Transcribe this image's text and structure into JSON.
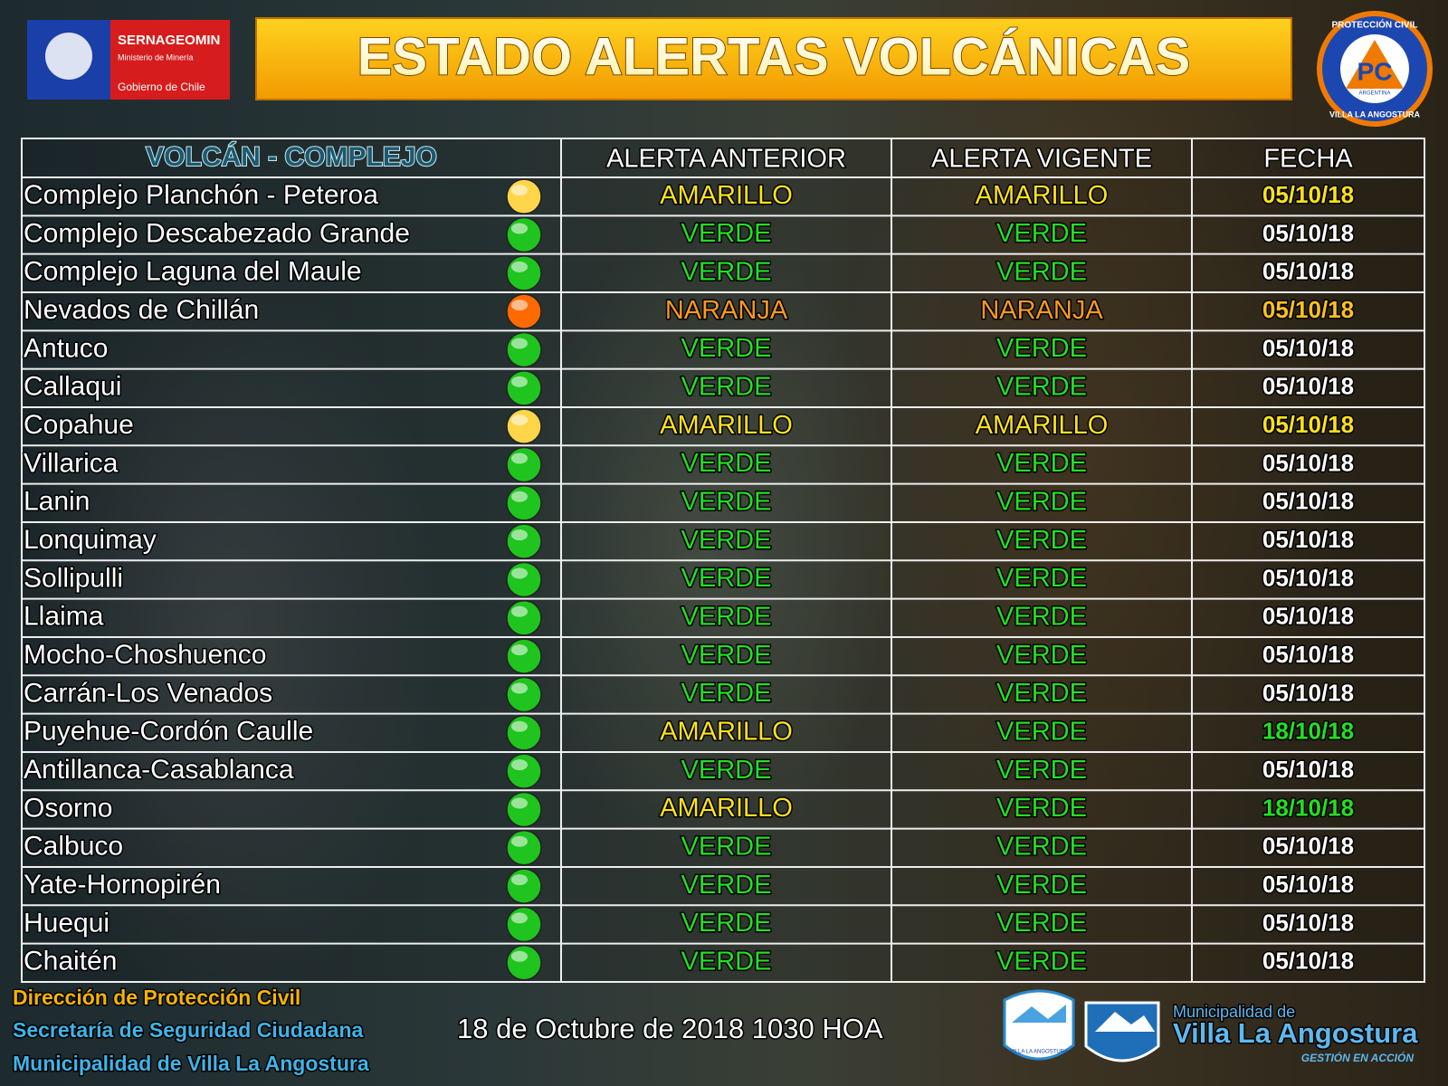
{
  "header": {
    "title": "ESTADO ALERTAS VOLCÁNICAS",
    "left_logo": {
      "name": "SERNAGEOMIN",
      "ministry": "Ministerio de Minería",
      "government": "Gobierno de Chile"
    },
    "right_logo": {
      "ring_top": "PROTECCIÓN CIVIL",
      "initials": "PC",
      "country": "ARGENTINA",
      "ring_bottom": "VILLA LA ANGOSTURA"
    }
  },
  "table": {
    "headers": [
      "VOLCÁN - COMPLEJO",
      "ALERTA ANTERIOR",
      "ALERTA VIGENTE",
      "FECHA"
    ],
    "rows": [
      {
        "volcano": "Complejo Planchón - Peteroa",
        "previous": "AMARILLO",
        "current": "AMARILLO",
        "date": "05/10/18",
        "dot_color": "#ffd54a",
        "previous_color": "#ffe21a",
        "current_color": "#ffe21a",
        "date_color": "#ffe21a"
      },
      {
        "volcano": "Complejo Descabezado Grande",
        "previous": "VERDE",
        "current": "VERDE",
        "date": "05/10/18",
        "dot_color": "#1fc41f",
        "previous_color": "#22e022",
        "current_color": "#22e022",
        "date_color": "#ffffff"
      },
      {
        "volcano": "Complejo Laguna del Maule",
        "previous": "VERDE",
        "current": "VERDE",
        "date": "05/10/18",
        "dot_color": "#1fc41f",
        "previous_color": "#22e022",
        "current_color": "#22e022",
        "date_color": "#ffffff"
      },
      {
        "volcano": "Nevados de Chillán",
        "previous": "NARANJA",
        "current": "NARANJA",
        "date": "05/10/18",
        "dot_color": "#ff6a00",
        "previous_color": "#ff9a1a",
        "current_color": "#ff9a1a",
        "date_color": "#ffc21a"
      },
      {
        "volcano": "Antuco",
        "previous": "VERDE",
        "current": "VERDE",
        "date": "05/10/18",
        "dot_color": "#1fc41f",
        "previous_color": "#22e022",
        "current_color": "#22e022",
        "date_color": "#ffffff"
      },
      {
        "volcano": "Callaqui",
        "previous": "VERDE",
        "current": "VERDE",
        "date": "05/10/18",
        "dot_color": "#1fc41f",
        "previous_color": "#22e022",
        "current_color": "#22e022",
        "date_color": "#ffffff"
      },
      {
        "volcano": "Copahue",
        "previous": "AMARILLO",
        "current": "AMARILLO",
        "date": "05/10/18",
        "dot_color": "#ffd54a",
        "previous_color": "#ffe21a",
        "current_color": "#ffe21a",
        "date_color": "#ffe21a"
      },
      {
        "volcano": "Villarica",
        "previous": "VERDE",
        "current": "VERDE",
        "date": "05/10/18",
        "dot_color": "#1fc41f",
        "previous_color": "#22e022",
        "current_color": "#22e022",
        "date_color": "#ffffff"
      },
      {
        "volcano": "Lanin",
        "previous": "VERDE",
        "current": "VERDE",
        "date": "05/10/18",
        "dot_color": "#1fc41f",
        "previous_color": "#22e022",
        "current_color": "#22e022",
        "date_color": "#ffffff"
      },
      {
        "volcano": "Lonquimay",
        "previous": "VERDE",
        "current": "VERDE",
        "date": "05/10/18",
        "dot_color": "#1fc41f",
        "previous_color": "#22e022",
        "current_color": "#22e022",
        "date_color": "#ffffff"
      },
      {
        "volcano": "Sollipulli",
        "previous": "VERDE",
        "current": "VERDE",
        "date": "05/10/18",
        "dot_color": "#1fc41f",
        "previous_color": "#22e022",
        "current_color": "#22e022",
        "date_color": "#ffffff"
      },
      {
        "volcano": "Llaima",
        "previous": "VERDE",
        "current": "VERDE",
        "date": "05/10/18",
        "dot_color": "#1fc41f",
        "previous_color": "#22e022",
        "current_color": "#22e022",
        "date_color": "#ffffff"
      },
      {
        "volcano": "Mocho-Choshuenco",
        "previous": "VERDE",
        "current": "VERDE",
        "date": "05/10/18",
        "dot_color": "#1fc41f",
        "previous_color": "#22e022",
        "current_color": "#22e022",
        "date_color": "#ffffff"
      },
      {
        "volcano": "Carrán-Los Venados",
        "previous": "VERDE",
        "current": "VERDE",
        "date": "05/10/18",
        "dot_color": "#1fc41f",
        "previous_color": "#22e022",
        "current_color": "#22e022",
        "date_color": "#ffffff"
      },
      {
        "volcano": "Puyehue-Cordón Caulle",
        "previous": "AMARILLO",
        "current": "VERDE",
        "date": "18/10/18",
        "dot_color": "#1fc41f",
        "previous_color": "#ffe21a",
        "current_color": "#22e022",
        "date_color": "#22e022"
      },
      {
        "volcano": "Antillanca-Casablanca",
        "previous": "VERDE",
        "current": "VERDE",
        "date": "05/10/18",
        "dot_color": "#1fc41f",
        "previous_color": "#22e022",
        "current_color": "#22e022",
        "date_color": "#ffffff"
      },
      {
        "volcano": "Osorno",
        "previous": "AMARILLO",
        "current": "VERDE",
        "date": "18/10/18",
        "dot_color": "#1fc41f",
        "previous_color": "#ffe21a",
        "current_color": "#22e022",
        "date_color": "#22e022"
      },
      {
        "volcano": "Calbuco",
        "previous": "VERDE",
        "current": "VERDE",
        "date": "05/10/18",
        "dot_color": "#1fc41f",
        "previous_color": "#22e022",
        "current_color": "#22e022",
        "date_color": "#ffffff"
      },
      {
        "volcano": "Yate-Hornopirén",
        "previous": "VERDE",
        "current": "VERDE",
        "date": "05/10/18",
        "dot_color": "#1fc41f",
        "previous_color": "#22e022",
        "current_color": "#22e022",
        "date_color": "#ffffff"
      },
      {
        "volcano": "Huequi",
        "previous": "VERDE",
        "current": "VERDE",
        "date": "05/10/18",
        "dot_color": "#1fc41f",
        "previous_color": "#22e022",
        "current_color": "#22e022",
        "date_color": "#ffffff"
      },
      {
        "volcano": "Chaitén",
        "previous": "VERDE",
        "current": "VERDE",
        "date": "05/10/18",
        "dot_color": "#1fc41f",
        "previous_color": "#22e022",
        "current_color": "#22e022",
        "date_color": "#ffffff"
      }
    ]
  },
  "footer": {
    "credits": [
      "Dirección de Protección Civil",
      "Secretaría de Seguridad Ciudadana",
      "Municipalidad de Villa La Angostura"
    ],
    "timestamp": "18 de Octubre de 2018  1030 HOA",
    "shield_text": "VILLA LA ANGOSTURA",
    "municipality_prefix": "Municipalidad de",
    "municipality_name": "Villa La Angostura",
    "slogan": "GESTIÓN EN ACCIÓN"
  }
}
